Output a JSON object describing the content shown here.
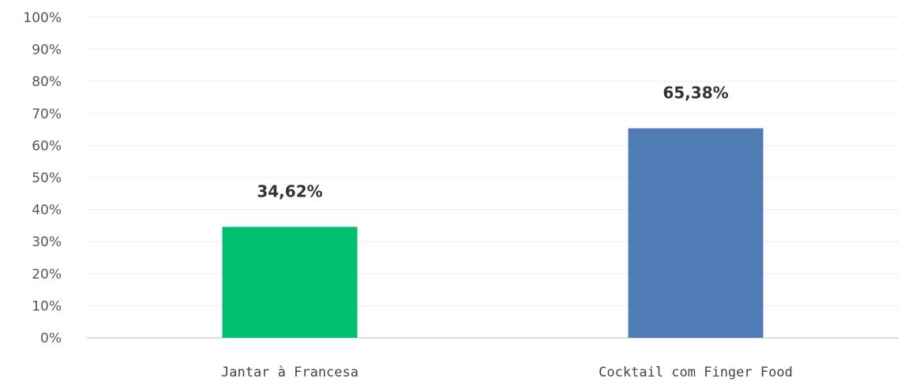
{
  "chart_data": {
    "type": "bar",
    "categories": [
      "Jantar à Francesa",
      "Cocktail com Finger Food"
    ],
    "values": [
      34.62,
      65.38
    ],
    "value_labels": [
      "34,62%",
      "65,38%"
    ],
    "colors": [
      "#00bf6f",
      "#507cb6"
    ],
    "ylim": [
      0,
      100
    ],
    "yticks": [
      0,
      10,
      20,
      30,
      40,
      50,
      60,
      70,
      80,
      90,
      100
    ],
    "ytick_labels": [
      "0%",
      "10%",
      "20%",
      "30%",
      "40%",
      "50%",
      "60%",
      "70%",
      "80%",
      "90%",
      "100%"
    ],
    "grid": true,
    "legend": "none"
  }
}
